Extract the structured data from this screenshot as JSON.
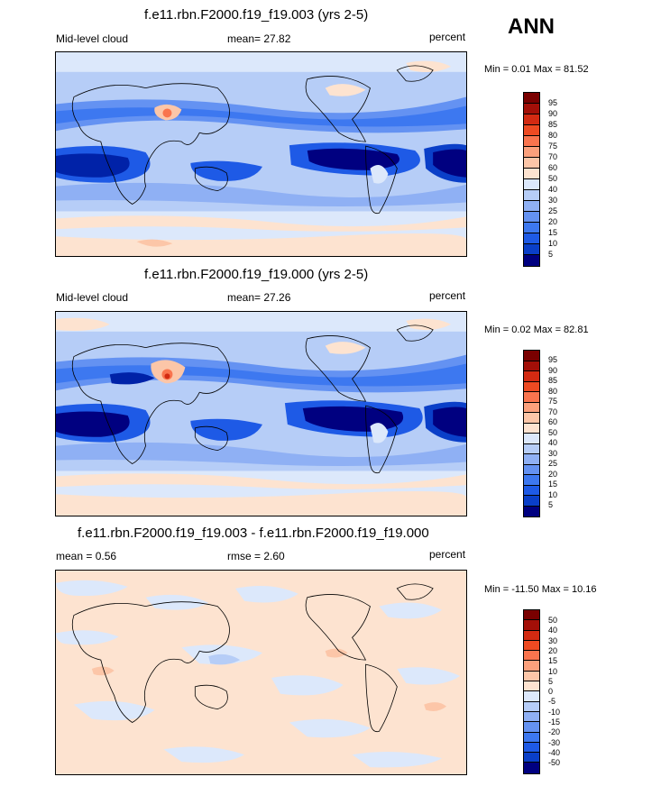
{
  "ann_label": "ANN",
  "panels": [
    {
      "title": "f.e11.rbn.F2000.f19_f19.003 (yrs 2-5)",
      "left_label": "Mid-level cloud",
      "center_label": "mean=  27.82",
      "right_label": "percent",
      "minmax": "Min =   0.01 Max =  81.52",
      "palette": [
        "#000080",
        "#0022a8",
        "#0a3fc8",
        "#1e5ae6",
        "#3d78f0",
        "#6492f2",
        "#8fb0f4",
        "#b6cdf7",
        "#dce8fb",
        "#fde3d0",
        "#fcc6a8",
        "#fba07c",
        "#f9744e",
        "#ee4a22",
        "#d32a12",
        "#a30f08",
        "#7a0000"
      ],
      "levels": [
        "95",
        "90",
        "85",
        "80",
        "75",
        "70",
        "60",
        "50",
        "40",
        "30",
        "25",
        "20",
        "15",
        "10",
        "5"
      ]
    },
    {
      "title": "f.e11.rbn.F2000.f19_f19.000 (yrs 2-5)",
      "left_label": "Mid-level cloud",
      "center_label": "mean=  27.26",
      "right_label": "percent",
      "minmax": "Min =   0.02 Max =  82.81",
      "palette": [
        "#000080",
        "#0022a8",
        "#0a3fc8",
        "#1e5ae6",
        "#3d78f0",
        "#6492f2",
        "#8fb0f4",
        "#b6cdf7",
        "#dce8fb",
        "#fde3d0",
        "#fcc6a8",
        "#fba07c",
        "#f9744e",
        "#ee4a22",
        "#d32a12",
        "#a30f08",
        "#7a0000"
      ],
      "levels": [
        "95",
        "90",
        "85",
        "80",
        "75",
        "70",
        "60",
        "50",
        "40",
        "30",
        "25",
        "20",
        "15",
        "10",
        "5"
      ]
    },
    {
      "title": "f.e11.rbn.F2000.f19_f19.003 - f.e11.rbn.F2000.f19_f19.000",
      "left_label": "mean =   0.56",
      "center_label": "rmse =   2.60",
      "right_label": "percent",
      "minmax": "Min = -11.50 Max =  10.16",
      "palette": [
        "#000080",
        "#0022a8",
        "#0a3fc8",
        "#1e5ae6",
        "#3d78f0",
        "#6492f2",
        "#8fb0f4",
        "#b6cdf7",
        "#dce8fb",
        "#fde3d0",
        "#fcc6a8",
        "#fba07c",
        "#f9744e",
        "#ee4a22",
        "#d32a12",
        "#a30f08",
        "#7a0000"
      ],
      "levels": [
        "50",
        "40",
        "30",
        "20",
        "15",
        "10",
        "5",
        "0",
        "-5",
        "-10",
        "-15",
        "-20",
        "-30",
        "-40",
        "-50"
      ]
    }
  ]
}
